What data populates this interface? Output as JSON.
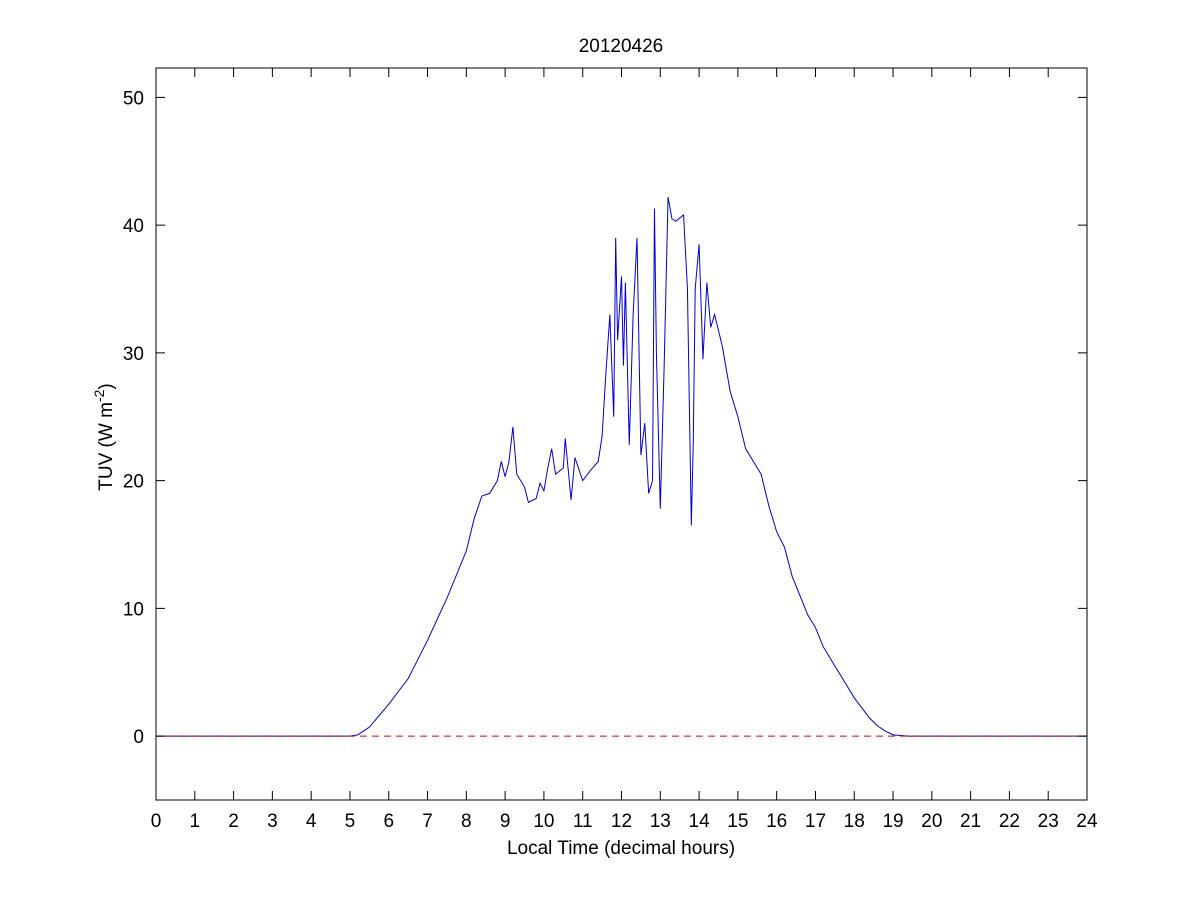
{
  "chart_data": {
    "type": "line",
    "title": "20120426",
    "xlabel": "Local Time (decimal hours)",
    "ylabel_parts": [
      "TUV (W m",
      "-2",
      ")"
    ],
    "xlim": [
      0,
      24
    ],
    "ylim": [
      -5,
      52.3
    ],
    "xticks": [
      0,
      1,
      2,
      3,
      4,
      5,
      6,
      7,
      8,
      9,
      10,
      11,
      12,
      13,
      14,
      15,
      16,
      17,
      18,
      19,
      20,
      21,
      22,
      23,
      24
    ],
    "yticks": [
      0,
      10,
      20,
      30,
      40,
      50
    ],
    "grid": false,
    "series": [
      {
        "color": "#0000cc",
        "dash": false,
        "x": [
          0,
          5,
          5.2,
          5.5,
          6,
          6.5,
          7,
          7.5,
          8,
          8.2,
          8.4,
          8.6,
          8.8,
          8.9,
          9.0,
          9.1,
          9.2,
          9.3,
          9.5,
          9.6,
          9.8,
          9.9,
          10.0,
          10.1,
          10.2,
          10.3,
          10.5,
          10.55,
          10.7,
          10.8,
          11.0,
          11.2,
          11.4,
          11.5,
          11.6,
          11.7,
          11.8,
          11.85,
          11.9,
          12.0,
          12.05,
          12.1,
          12.2,
          12.3,
          12.4,
          12.5,
          12.6,
          12.7,
          12.8,
          12.85,
          12.9,
          13.0,
          13.1,
          13.2,
          13.3,
          13.4,
          13.6,
          13.7,
          13.8,
          13.85,
          13.9,
          14.0,
          14.1,
          14.2,
          14.3,
          14.4,
          14.6,
          14.8,
          15.0,
          15.2,
          15.4,
          15.6,
          15.8,
          16.0,
          16.2,
          16.4,
          16.6,
          16.8,
          17.0,
          17.2,
          17.4,
          17.6,
          17.8,
          18.0,
          18.2,
          18.4,
          18.6,
          18.8,
          19.0,
          19.4,
          24
        ],
        "values": [
          0,
          0,
          0.1,
          0.7,
          2.5,
          4.5,
          7.5,
          10.8,
          14.5,
          17,
          18.8,
          19,
          20,
          21.5,
          20.3,
          21.5,
          24.2,
          20.5,
          19.5,
          18.3,
          18.6,
          19.8,
          19.2,
          21,
          22.5,
          20.5,
          21,
          23.3,
          18.5,
          21.8,
          20,
          20.8,
          21.5,
          23.5,
          28.5,
          33,
          25,
          39,
          31,
          36,
          29,
          35.5,
          22.8,
          33,
          39,
          22,
          24.5,
          19,
          20,
          41.3,
          30,
          17.8,
          29,
          42.2,
          40.5,
          40.3,
          40.8,
          35,
          16.5,
          23,
          35,
          38.5,
          29.5,
          35.5,
          32,
          33,
          30.5,
          27,
          25,
          22.5,
          21.5,
          20.5,
          18,
          16,
          14.8,
          12.5,
          11,
          9.5,
          8.5,
          7,
          6,
          5,
          4,
          3,
          2.2,
          1.4,
          0.8,
          0.4,
          0.1,
          0,
          0
        ]
      },
      {
        "color": "#dd0000",
        "dash": true,
        "x": [
          0,
          24
        ],
        "values": [
          0,
          0
        ]
      }
    ]
  }
}
